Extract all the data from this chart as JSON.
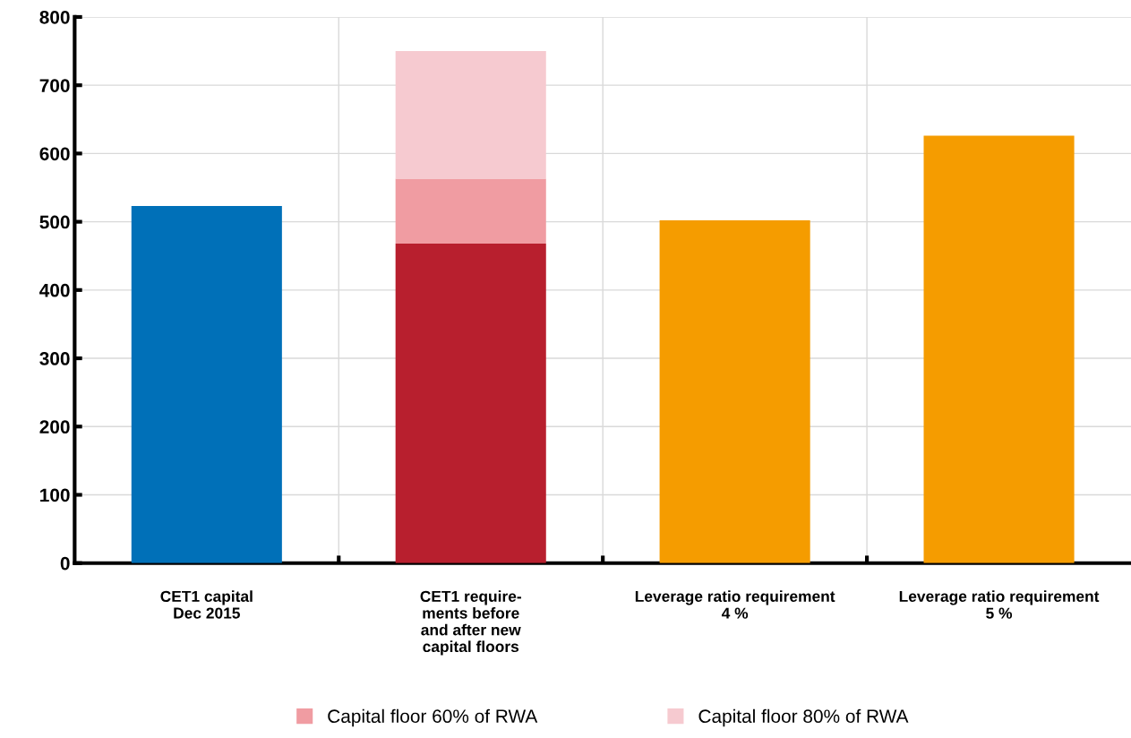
{
  "chart_data": {
    "type": "bar",
    "stacked": true,
    "categories": [
      "CET1 capital\nDec 2015",
      "CET1 require-\nments before\nand after new\ncapital floors",
      "Leverage ratio requirement\n4 %",
      "Leverage ratio requirement\n5 %"
    ],
    "series": [
      {
        "colors": [
          "#0070b8",
          "#b81f2e",
          "#f59c00",
          "#f59c00"
        ],
        "values": [
          523,
          468,
          502,
          626
        ]
      },
      {
        "name": "Capital floor 60% of RWA",
        "color": "#f09ca2",
        "values": [
          null,
          95,
          null,
          null
        ]
      },
      {
        "name": "Capital floor 80% of RWA",
        "color": "#f6cad0",
        "values": [
          null,
          187,
          null,
          null
        ]
      }
    ],
    "ylim": [
      0,
      800
    ],
    "yticks": [
      0,
      100,
      200,
      300,
      400,
      500,
      600,
      700,
      800
    ],
    "grid": true,
    "legend": "bottom"
  }
}
